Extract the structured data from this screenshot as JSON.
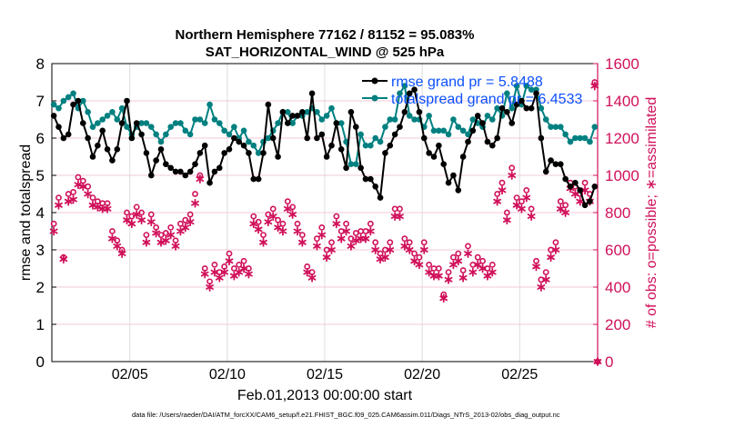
{
  "chart_data": {
    "type": "line",
    "title": [
      "Northern Hemisphere 77162 / 81152 = 95.083%",
      "SAT_HORIZONTAL_WIND @ 525 hPa"
    ],
    "xlabel": "Feb.01,2013 00:00:00 start",
    "ylabel": "rmse and totalspread",
    "ylabel_right": "# of obs: o=possible; ∗=assimilated",
    "xlim_days": [
      0,
      28
    ],
    "ylim": [
      0,
      8
    ],
    "ylim_right": [
      0,
      1600
    ],
    "x_ticks": [
      {
        "day": 4,
        "label": "02/05"
      },
      {
        "day": 9,
        "label": "02/10"
      },
      {
        "day": 14,
        "label": "02/15"
      },
      {
        "day": 19,
        "label": "02/20"
      },
      {
        "day": 24,
        "label": "02/25"
      }
    ],
    "y_ticks": [
      "0",
      "1",
      "2",
      "3",
      "4",
      "5",
      "6",
      "7",
      "8"
    ],
    "y_ticks_right": [
      "0",
      "200",
      "400",
      "600",
      "800",
      "1000",
      "1200",
      "1400",
      "1600"
    ],
    "x_step_days": 0.25,
    "legend": {
      "placement": "top-right",
      "entries": [
        "rmse grand pr = 5.8488",
        "totalspread grand pr = 6.4533"
      ]
    },
    "footer": "data file: /Users/raeder/DAI/ATM_forcXX/CAM6_setup/f.e21.FHIST_BGC.f09_025.CAM6assim.011/Diags_NTrS_2013-02/obs_diag_output.nc",
    "colors": {
      "rmse": "#000000",
      "totalspread": "#008080",
      "obs": "#d0105a",
      "legend_text": "#0b50ff"
    },
    "series": [
      {
        "name": "rmse",
        "values": [
          6.6,
          6.3,
          6.0,
          6.1,
          6.9,
          7.0,
          6.4,
          6.0,
          5.5,
          5.8,
          6.2,
          5.7,
          5.4,
          5.7,
          6.4,
          7.0,
          6.0,
          6.4,
          6.1,
          5.6,
          5.0,
          5.4,
          5.7,
          5.3,
          5.2,
          5.1,
          5.1,
          5.0,
          5.1,
          5.3,
          5.6,
          5.8,
          4.8,
          5.1,
          5.2,
          5.6,
          5.7,
          6.0,
          5.9,
          5.8,
          5.6,
          4.9,
          4.9,
          5.6,
          6.9,
          6.0,
          5.5,
          6.7,
          6.4,
          6.6,
          6.6,
          6.7,
          6.0,
          7.2,
          6.0,
          6.1,
          5.5,
          5.8,
          6.4,
          5.7,
          5.2,
          6.7,
          6.3,
          5.2,
          4.9,
          4.9,
          4.7,
          4.4,
          5.6,
          5.8,
          6.1,
          6.3,
          6.7,
          7.2,
          7.3,
          6.7,
          6.0,
          5.6,
          5.5,
          5.8,
          5.3,
          4.8,
          5.0,
          4.6,
          5.5,
          5.9,
          6.2,
          6.6,
          6.4,
          5.9,
          5.8,
          6.0,
          6.8,
          6.7,
          6.4,
          6.9,
          7.0,
          6.8,
          6.8,
          7.2,
          6.0,
          5.1,
          5.4,
          5.3,
          5.3,
          4.9,
          4.7,
          4.8,
          4.6,
          4.2,
          4.3,
          4.7
        ]
      },
      {
        "name": "totalspread",
        "values": [
          6.9,
          6.8,
          7.0,
          7.1,
          7.2,
          6.8,
          7.0,
          6.7,
          6.3,
          6.4,
          6.5,
          6.6,
          6.7,
          6.5,
          6.8,
          6.3,
          6.1,
          6.3,
          6.4,
          6.4,
          6.3,
          6.1,
          5.9,
          6.1,
          6.3,
          6.4,
          6.4,
          6.2,
          6.1,
          6.5,
          6.5,
          6.4,
          6.9,
          6.5,
          6.4,
          6.2,
          6.1,
          6.3,
          6.0,
          6.2,
          5.9,
          5.8,
          5.6,
          5.9,
          6.0,
          6.2,
          6.4,
          6.7,
          6.7,
          6.4,
          6.6,
          6.6,
          6.7,
          6.8,
          6.7,
          6.5,
          6.6,
          6.8,
          6.4,
          6.4,
          5.9,
          5.3,
          5.3,
          6.1,
          5.8,
          5.8,
          6.0,
          5.9,
          6.3,
          6.5,
          6.5,
          7.2,
          7.4,
          6.6,
          6.5,
          6.5,
          6.3,
          6.6,
          6.2,
          6.2,
          6.2,
          6.1,
          6.5,
          6.3,
          6.2,
          6.1,
          6.5,
          6.4,
          6.3,
          6.6,
          6.5,
          6.8,
          6.6,
          7.2,
          6.8,
          7.4,
          6.9,
          7.4,
          7.3,
          7.3,
          6.8,
          6.5,
          6.3,
          6.3,
          6.3,
          6.1,
          5.9,
          6.0,
          6.0,
          6.0,
          5.9,
          6.3
        ]
      },
      {
        "name": "obs_possible",
        "values": [
          740,
          880,
          560,
          900,
          910,
          990,
          970,
          940,
          880,
          860,
          850,
          850,
          700,
          650,
          600,
          800,
          780,
          830,
          800,
          680,
          790,
          720,
          680,
          690,
          720,
          650,
          740,
          760,
          790,
          900,
          1000,
          500,
          430,
          520,
          480,
          510,
          580,
          500,
          520,
          540,
          500,
          780,
          750,
          680,
          790,
          820,
          760,
          740,
          860,
          830,
          740,
          680,
          510,
          480,
          660,
          720,
          600,
          640,
          780,
          700,
          740,
          660,
          690,
          700,
          700,
          740,
          640,
          580,
          600,
          640,
          820,
          820,
          660,
          640,
          580,
          560,
          640,
          520,
          500,
          500,
          360,
          480,
          560,
          580,
          490,
          620,
          520,
          560,
          540,
          500,
          520,
          900,
          960,
          800,
          1040,
          880,
          860,
          920,
          820,
          540,
          440,
          480,
          600,
          640,
          860,
          840,
          960,
          940,
          900,
          960,
          900,
          1500,
          0
        ]
      },
      {
        "name": "obs_assimilated",
        "values": [
          700,
          840,
          550,
          860,
          870,
          950,
          940,
          900,
          840,
          830,
          820,
          820,
          660,
          620,
          580,
          760,
          740,
          790,
          760,
          640,
          750,
          690,
          640,
          650,
          680,
          620,
          700,
          720,
          750,
          850,
          980,
          470,
          400,
          480,
          450,
          480,
          540,
          460,
          480,
          500,
          470,
          740,
          710,
          640,
          750,
          780,
          720,
          700,
          820,
          790,
          700,
          640,
          480,
          450,
          620,
          680,
          560,
          600,
          740,
          660,
          700,
          620,
          650,
          660,
          660,
          700,
          600,
          550,
          560,
          600,
          780,
          780,
          620,
          600,
          540,
          520,
          600,
          480,
          460,
          460,
          340,
          440,
          520,
          540,
          450,
          580,
          480,
          520,
          500,
          460,
          480,
          860,
          920,
          760,
          1000,
          840,
          820,
          880,
          780,
          510,
          400,
          440,
          560,
          600,
          820,
          800,
          930,
          900,
          860,
          920,
          860,
          1480,
          0
        ]
      }
    ]
  }
}
